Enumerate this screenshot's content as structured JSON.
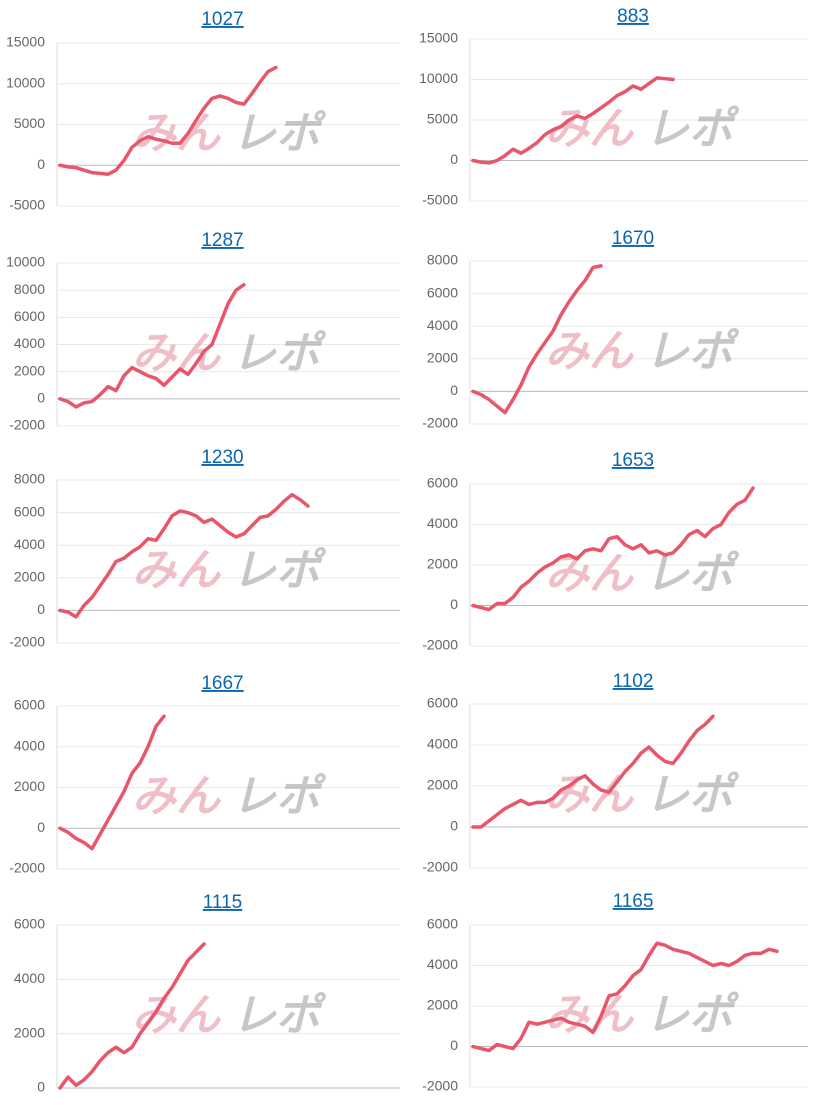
{
  "watermark": [
    "みん",
    "レポ"
  ],
  "chart_data": [
    {
      "type": "line",
      "title": "1027",
      "color": "#e8566c",
      "ylim": [
        -5000,
        15000
      ],
      "yticks": [
        -5000,
        0,
        5000,
        10000,
        15000
      ],
      "values": [
        0,
        -200,
        -300,
        -600,
        -900,
        -1000,
        -1100,
        -600,
        600,
        2200,
        3000,
        3500,
        3200,
        3000,
        2700,
        2700,
        3900,
        5500,
        7000,
        8200,
        8500,
        8200,
        7700,
        7500,
        8800,
        10200,
        11500,
        12000
      ]
    },
    {
      "type": "line",
      "title": "883",
      "color": "#e8566c",
      "ylim": [
        -5000,
        15000
      ],
      "yticks": [
        -5000,
        0,
        5000,
        10000,
        15000
      ],
      "values": [
        0,
        -200,
        -300,
        0,
        600,
        1400,
        900,
        1500,
        2200,
        3200,
        3800,
        4200,
        5000,
        5500,
        5200,
        5800,
        6500,
        7200,
        8000,
        8500,
        9200,
        8800,
        9500,
        10200,
        10100,
        10000
      ]
    },
    {
      "type": "line",
      "title": "1287",
      "color": "#e8566c",
      "ylim": [
        -2000,
        10000
      ],
      "yticks": [
        -2000,
        0,
        2000,
        4000,
        6000,
        8000,
        10000
      ],
      "values": [
        0,
        -200,
        -600,
        -300,
        -200,
        300,
        900,
        600,
        1700,
        2300,
        2000,
        1700,
        1500,
        1000,
        1600,
        2200,
        1800,
        2600,
        3500,
        4000,
        5500,
        7000,
        8000,
        8400
      ]
    },
    {
      "type": "line",
      "title": "1670",
      "color": "#e8566c",
      "ylim": [
        -2000,
        8000
      ],
      "yticks": [
        -2000,
        0,
        2000,
        4000,
        6000,
        8000
      ],
      "values": [
        0,
        -200,
        -500,
        -900,
        -1300,
        -500,
        400,
        1500,
        2300,
        3000,
        3700,
        4700,
        5500,
        6200,
        6800,
        7600,
        7700
      ]
    },
    {
      "type": "line",
      "title": "1230",
      "color": "#e8566c",
      "ylim": [
        -2000,
        8000
      ],
      "yticks": [
        -2000,
        0,
        2000,
        4000,
        6000,
        8000
      ],
      "values": [
        0,
        -100,
        -400,
        300,
        800,
        1500,
        2200,
        3000,
        3200,
        3600,
        3900,
        4400,
        4300,
        5000,
        5800,
        6100,
        6000,
        5800,
        5400,
        5600,
        5200,
        4800,
        4500,
        4700,
        5200,
        5700,
        5800,
        6200,
        6700,
        7100,
        6800,
        6400
      ]
    },
    {
      "type": "line",
      "title": "1653",
      "color": "#e8566c",
      "ylim": [
        -2000,
        6000
      ],
      "yticks": [
        -2000,
        0,
        2000,
        4000,
        6000
      ],
      "values": [
        0,
        -100,
        -200,
        100,
        100,
        400,
        900,
        1200,
        1600,
        1900,
        2100,
        2400,
        2500,
        2300,
        2700,
        2800,
        2700,
        3300,
        3400,
        3000,
        2800,
        3000,
        2600,
        2700,
        2500,
        2600,
        3000,
        3500,
        3700,
        3400,
        3800,
        4000,
        4600,
        5000,
        5200,
        5800
      ]
    },
    {
      "type": "line",
      "title": "1667",
      "color": "#e8566c",
      "ylim": [
        -2000,
        6000
      ],
      "yticks": [
        -2000,
        0,
        2000,
        4000,
        6000
      ],
      "values": [
        0,
        -200,
        -500,
        -700,
        -1000,
        -300,
        400,
        1100,
        1800,
        2700,
        3200,
        4000,
        5000,
        5500
      ]
    },
    {
      "type": "line",
      "title": "1102",
      "color": "#e8566c",
      "ylim": [
        -2000,
        6000
      ],
      "yticks": [
        -2000,
        0,
        2000,
        4000,
        6000
      ],
      "values": [
        0,
        0,
        300,
        600,
        900,
        1100,
        1300,
        1100,
        1200,
        1200,
        1400,
        1800,
        2000,
        2300,
        2500,
        2100,
        1800,
        1700,
        2200,
        2700,
        3100,
        3600,
        3900,
        3500,
        3200,
        3100,
        3600,
        4200,
        4700,
        5000,
        5400
      ]
    },
    {
      "type": "line",
      "title": "1115",
      "color": "#e8566c",
      "ylim": [
        0,
        6000
      ],
      "yticks": [
        0,
        2000,
        4000,
        6000
      ],
      "values": [
        0,
        400,
        100,
        300,
        600,
        1000,
        1300,
        1500,
        1300,
        1500,
        2000,
        2400,
        2800,
        3300,
        3700,
        4200,
        4700,
        5000,
        5300
      ]
    },
    {
      "type": "line",
      "title": "1165",
      "color": "#e8566c",
      "ylim": [
        -2000,
        6000
      ],
      "yticks": [
        -2000,
        0,
        2000,
        4000,
        6000
      ],
      "values": [
        0,
        -100,
        -200,
        100,
        0,
        -100,
        400,
        1200,
        1100,
        1200,
        1300,
        1400,
        1200,
        1100,
        1000,
        700,
        1500,
        2500,
        2600,
        3000,
        3500,
        3800,
        4500,
        5100,
        5000,
        4800,
        4700,
        4600,
        4400,
        4200,
        4000,
        4100,
        4000,
        4200,
        4500,
        4600,
        4600,
        4800,
        4700
      ]
    }
  ]
}
